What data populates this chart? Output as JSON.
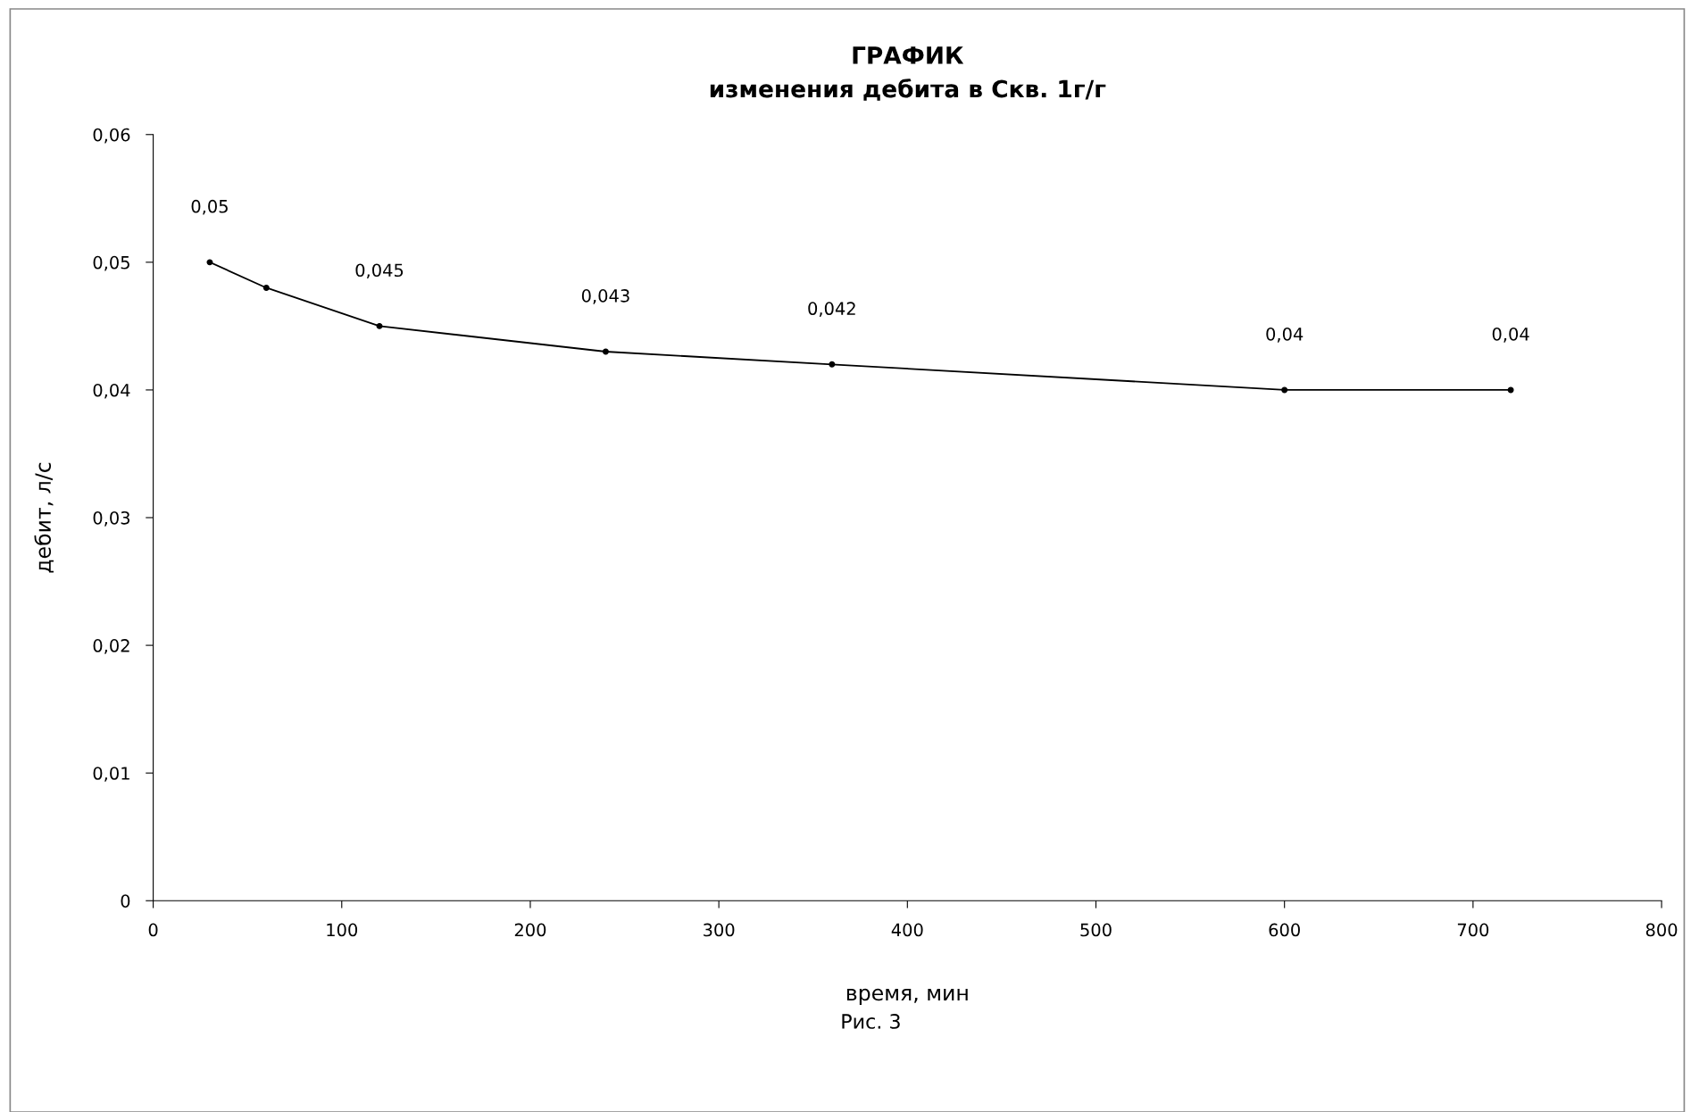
{
  "chart_data": {
    "type": "line",
    "title": "ГРАФИК\nизменения дебита в Скв. 1г/г",
    "xlabel": "время, мин",
    "ylabel": "дебит, л/с",
    "annotations": [
      "Рис. 3"
    ],
    "x": [
      30,
      60,
      120,
      240,
      360,
      600,
      720
    ],
    "series": [
      {
        "color": "#000000",
        "values": [
          0.05,
          0.048,
          0.045,
          0.043,
          0.042,
          0.04,
          0.04
        ],
        "value_labels": [
          "0,05",
          null,
          "0,045",
          "0,043",
          "0,042",
          "0,04",
          "0,04"
        ]
      }
    ],
    "xlim": [
      0,
      800
    ],
    "xticks": [
      0,
      100,
      200,
      300,
      400,
      500,
      600,
      700,
      800
    ],
    "ylim": [
      0,
      0.06
    ],
    "yticks": [
      0,
      {
        "value": 0.01,
        "label": "0,01"
      },
      {
        "value": 0.02,
        "label": "0,02"
      },
      {
        "value": 0.03,
        "label": "0,03"
      },
      {
        "value": 0.04,
        "label": "0,04"
      },
      {
        "value": 0.05,
        "label": "0,05"
      },
      {
        "value": 0.06,
        "label": "0,06"
      }
    ],
    "grid": false,
    "legend": false,
    "marker": "circle",
    "line_style": "solid"
  }
}
